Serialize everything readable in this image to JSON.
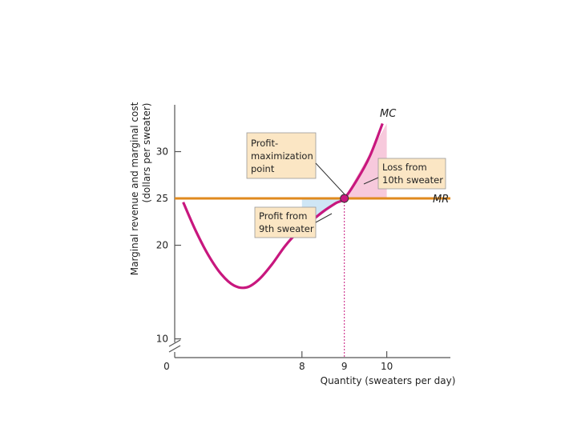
{
  "chart_data": {
    "type": "line",
    "xlabel": "Quantity (sweaters per day)",
    "ylabel_line1": "Marginal revenue and marginal cost",
    "ylabel_line2": "(dollars per sweater)",
    "x_ticks": [
      "8",
      "9",
      "10"
    ],
    "y_ticks": [
      "30",
      "25",
      "20",
      "10"
    ],
    "origin_label": "0",
    "xlim": [
      5,
      11.5
    ],
    "ylim": [
      8,
      35
    ],
    "series": [
      {
        "name": "MC",
        "color": "#c8177e",
        "x": [
          5.2,
          5.5,
          5.8,
          6.1,
          6.4,
          6.7,
          7.0,
          7.3,
          7.6,
          7.9,
          8.2,
          8.5,
          8.8,
          9.0,
          9.3,
          9.6,
          9.9
        ],
        "y": [
          24.6,
          21.5,
          18.9,
          16.9,
          15.7,
          15.5,
          16.4,
          18.0,
          19.9,
          21.4,
          22.5,
          23.6,
          24.5,
          25.0,
          27.0,
          29.5,
          33.0
        ]
      },
      {
        "name": "MR",
        "color": "#e08a1e",
        "x": [
          5.0,
          11.5
        ],
        "y": [
          25,
          25
        ]
      }
    ],
    "equilibrium": {
      "x": 9,
      "y": 25,
      "highlight_color": "#c8177e"
    },
    "profit_area": {
      "x_from": 8,
      "x_to": 9,
      "color": "#cfe6f5"
    },
    "loss_area": {
      "x_from": 9,
      "x_to": 10,
      "color": "#f7c9dc"
    },
    "annotations": {
      "profit_max": [
        "Profit-",
        "maximization",
        "point"
      ],
      "loss": [
        "Loss from",
        "10th sweater"
      ],
      "profit": [
        "Profit from",
        "9th sweater"
      ]
    }
  }
}
